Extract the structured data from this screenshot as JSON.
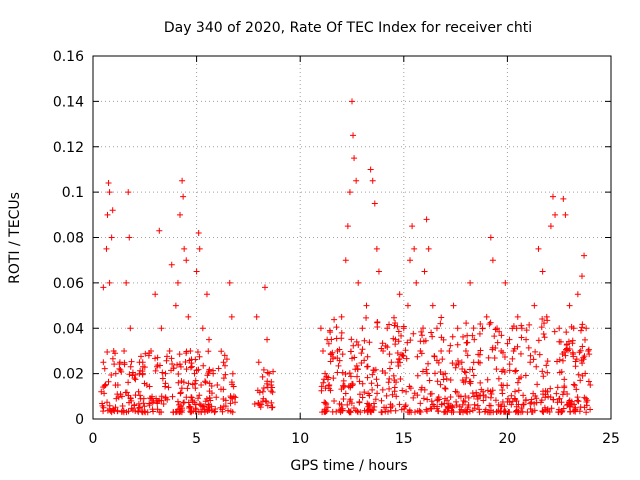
{
  "chart_data": {
    "type": "scatter",
    "title": "Day 340 of 2020, Rate Of TEC Index for receiver chti",
    "xlabel": "GPS time / hours",
    "ylabel": "ROTI / TECUs",
    "xlim": [
      0,
      25
    ],
    "ylim": [
      0,
      0.16
    ],
    "xticks": [
      0,
      5,
      10,
      15,
      20,
      25
    ],
    "yticks": [
      0,
      0.02,
      0.04,
      0.06,
      0.08,
      0.1,
      0.12,
      0.14,
      0.16
    ],
    "xtick_labels": [
      "0",
      "5",
      "10",
      "15",
      "20",
      "25"
    ],
    "ytick_labels": [
      "0",
      "0.02",
      "0.04",
      "0.06",
      "0.08",
      "0.1",
      "0.12",
      "0.14",
      "0.16"
    ],
    "grid": true,
    "marker": "+",
    "color": "#ff0000",
    "series": [
      {
        "points": [
          [
            0.4,
            0.012
          ],
          [
            0.5,
            0.025
          ],
          [
            0.5,
            0.058
          ],
          [
            0.6,
            0.015
          ],
          [
            0.65,
            0.075
          ],
          [
            0.7,
            0.09
          ],
          [
            0.75,
            0.104
          ],
          [
            0.8,
            0.1
          ],
          [
            0.8,
            0.06
          ],
          [
            0.9,
            0.08
          ],
          [
            0.95,
            0.092
          ],
          [
            1.0,
            0.03
          ],
          [
            1.1,
            0.02
          ],
          [
            1.2,
            0.015
          ],
          [
            1.3,
            0.025
          ],
          [
            1.4,
            0.01
          ],
          [
            1.5,
            0.03
          ],
          [
            1.6,
            0.06
          ],
          [
            1.7,
            0.1
          ],
          [
            1.75,
            0.08
          ],
          [
            1.8,
            0.04
          ],
          [
            2.0,
            0.018
          ],
          [
            2.2,
            0.012
          ],
          [
            2.4,
            0.025
          ],
          [
            2.6,
            0.015
          ],
          [
            2.8,
            0.03
          ],
          [
            3.0,
            0.055
          ],
          [
            3.2,
            0.083
          ],
          [
            3.3,
            0.04
          ],
          [
            3.5,
            0.02
          ],
          [
            3.7,
            0.03
          ],
          [
            3.8,
            0.068
          ],
          [
            4.0,
            0.05
          ],
          [
            4.1,
            0.06
          ],
          [
            4.2,
            0.09
          ],
          [
            4.3,
            0.105
          ],
          [
            4.35,
            0.098
          ],
          [
            4.4,
            0.075
          ],
          [
            4.5,
            0.07
          ],
          [
            4.6,
            0.045
          ],
          [
            4.7,
            0.03
          ],
          [
            4.9,
            0.02
          ],
          [
            5.0,
            0.065
          ],
          [
            5.1,
            0.082
          ],
          [
            5.15,
            0.075
          ],
          [
            5.3,
            0.04
          ],
          [
            5.5,
            0.055
          ],
          [
            5.6,
            0.035
          ],
          [
            5.8,
            0.02
          ],
          [
            6.0,
            0.015
          ],
          [
            6.3,
            0.025
          ],
          [
            6.6,
            0.06
          ],
          [
            6.7,
            0.045
          ],
          [
            6.8,
            0.01
          ],
          [
            7.9,
            0.045
          ],
          [
            8.0,
            0.025
          ],
          [
            8.2,
            0.012
          ],
          [
            8.3,
            0.058
          ],
          [
            8.4,
            0.035
          ],
          [
            8.5,
            0.02
          ],
          [
            8.6,
            0.015
          ],
          [
            11.0,
            0.04
          ],
          [
            11.1,
            0.03
          ],
          [
            11.2,
            0.02
          ],
          [
            11.4,
            0.015
          ],
          [
            11.6,
            0.018
          ],
          [
            11.8,
            0.03
          ],
          [
            12.0,
            0.045
          ],
          [
            12.2,
            0.07
          ],
          [
            12.3,
            0.085
          ],
          [
            12.4,
            0.1
          ],
          [
            12.5,
            0.14
          ],
          [
            12.55,
            0.125
          ],
          [
            12.6,
            0.115
          ],
          [
            12.7,
            0.105
          ],
          [
            12.8,
            0.06
          ],
          [
            13.0,
            0.04
          ],
          [
            13.2,
            0.05
          ],
          [
            13.4,
            0.11
          ],
          [
            13.5,
            0.105
          ],
          [
            13.6,
            0.095
          ],
          [
            13.7,
            0.075
          ],
          [
            13.8,
            0.065
          ],
          [
            14.0,
            0.03
          ],
          [
            14.2,
            0.04
          ],
          [
            14.4,
            0.025
          ],
          [
            14.6,
            0.035
          ],
          [
            14.8,
            0.055
          ],
          [
            15.0,
            0.04
          ],
          [
            15.2,
            0.05
          ],
          [
            15.3,
            0.07
          ],
          [
            15.4,
            0.085
          ],
          [
            15.5,
            0.075
          ],
          [
            15.6,
            0.06
          ],
          [
            15.8,
            0.03
          ],
          [
            16.0,
            0.065
          ],
          [
            16.1,
            0.088
          ],
          [
            16.2,
            0.075
          ],
          [
            16.4,
            0.05
          ],
          [
            16.6,
            0.04
          ],
          [
            16.8,
            0.03
          ],
          [
            17.0,
            0.02
          ],
          [
            17.2,
            0.03
          ],
          [
            17.4,
            0.05
          ],
          [
            17.6,
            0.04
          ],
          [
            17.8,
            0.025
          ],
          [
            18.0,
            0.03
          ],
          [
            18.2,
            0.06
          ],
          [
            18.4,
            0.035
          ],
          [
            18.6,
            0.025
          ],
          [
            18.8,
            0.04
          ],
          [
            19.0,
            0.045
          ],
          [
            19.2,
            0.08
          ],
          [
            19.3,
            0.07
          ],
          [
            19.5,
            0.04
          ],
          [
            19.7,
            0.03
          ],
          [
            19.9,
            0.06
          ],
          [
            20.1,
            0.035
          ],
          [
            20.3,
            0.03
          ],
          [
            20.5,
            0.045
          ],
          [
            20.7,
            0.04
          ],
          [
            20.9,
            0.035
          ],
          [
            21.1,
            0.025
          ],
          [
            21.3,
            0.05
          ],
          [
            21.5,
            0.075
          ],
          [
            21.7,
            0.065
          ],
          [
            21.9,
            0.045
          ],
          [
            22.1,
            0.085
          ],
          [
            22.2,
            0.098
          ],
          [
            22.3,
            0.09
          ],
          [
            22.5,
            0.04
          ],
          [
            22.7,
            0.097
          ],
          [
            22.8,
            0.09
          ],
          [
            23.0,
            0.05
          ],
          [
            23.2,
            0.04
          ],
          [
            23.4,
            0.055
          ],
          [
            23.6,
            0.063
          ],
          [
            23.7,
            0.072
          ],
          [
            23.8,
            0.04
          ],
          [
            23.9,
            0.03
          ],
          [
            24.0,
            0.015
          ]
        ]
      }
    ],
    "dense_bands": [
      {
        "x0": 0.4,
        "x1": 6.9,
        "low": 0.003,
        "high": 0.03,
        "count": 280
      },
      {
        "x0": 7.8,
        "x1": 8.7,
        "low": 0.005,
        "high": 0.022,
        "count": 28
      },
      {
        "x0": 11.0,
        "x1": 24.0,
        "low": 0.003,
        "high": 0.045,
        "count": 650
      }
    ]
  }
}
